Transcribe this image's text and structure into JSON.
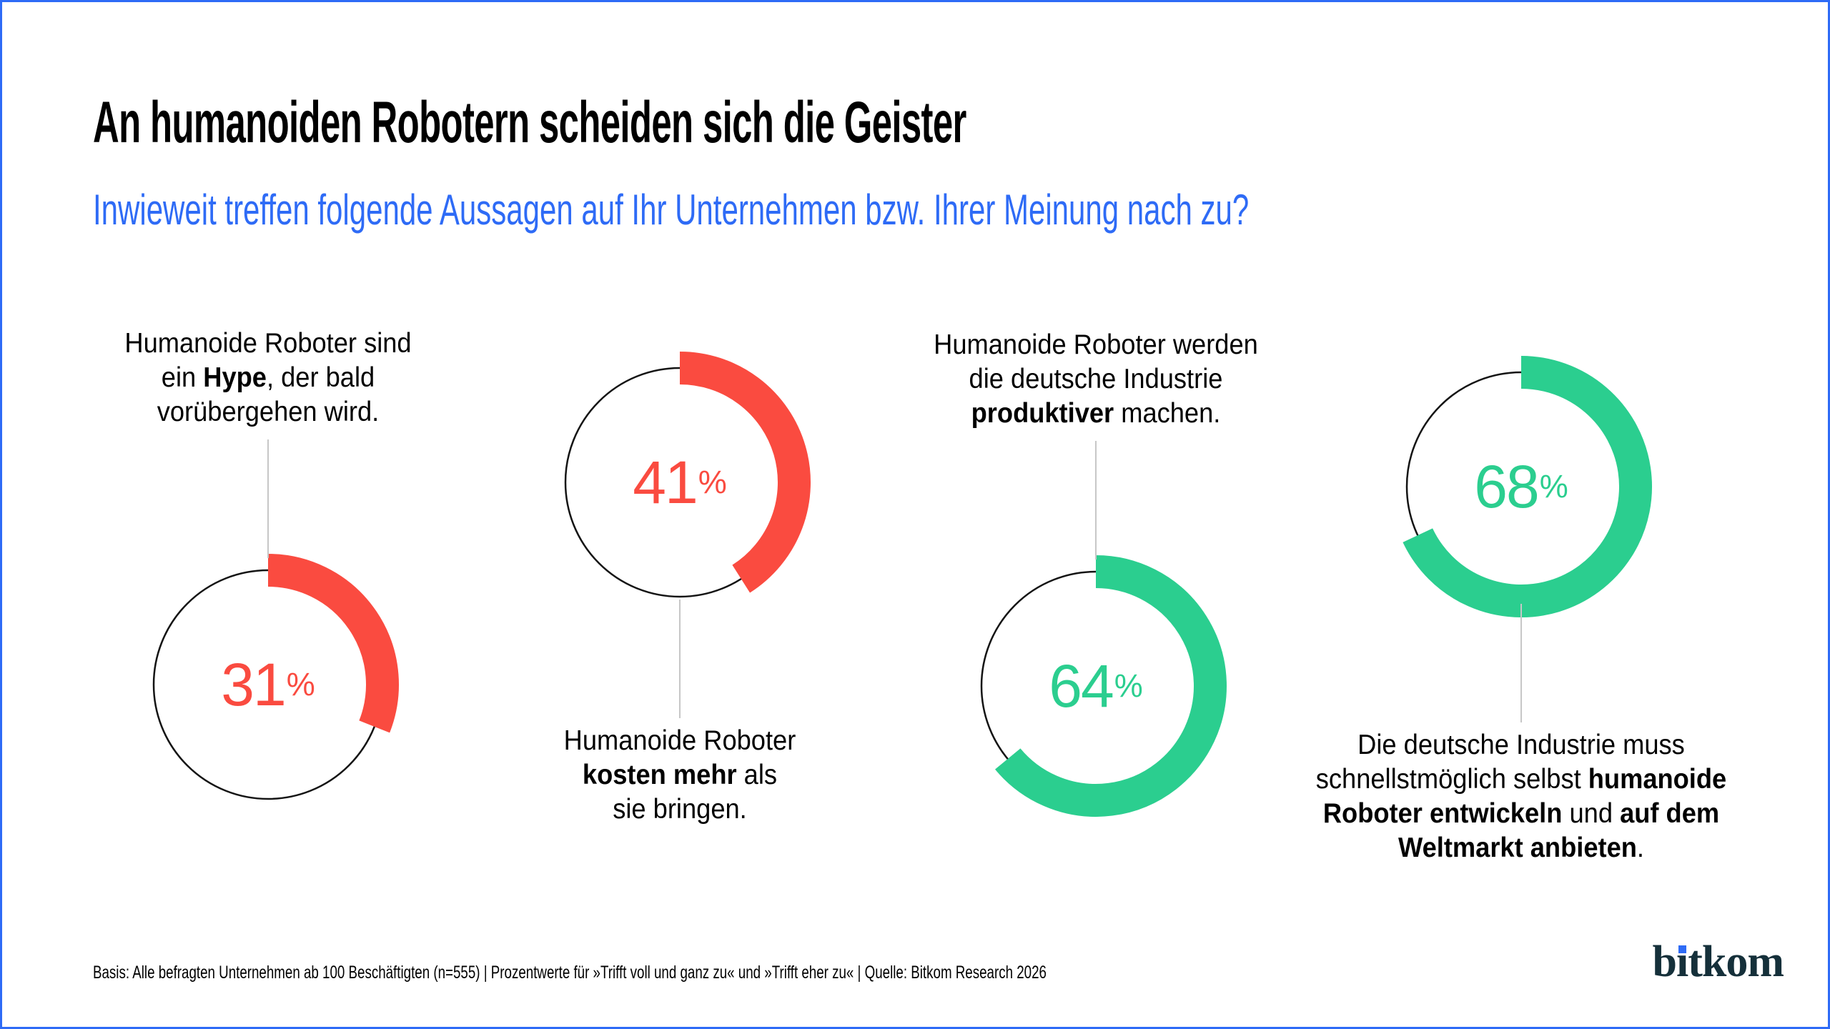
{
  "header": {
    "title": "An humanoiden Robotern scheiden sich die Geister",
    "subtitle": "Inwieweit treffen folgende Aussagen auf Ihr Unternehmen bzw. Ihrer Meinung nach zu?"
  },
  "chart_data": {
    "type": "donut",
    "unit": "%",
    "start_angle_deg": 0,
    "direction": "clockwise",
    "items": [
      {
        "value": 31,
        "color": "#fa4b40",
        "label_position": "above",
        "label_text": "Humanoide Roboter sind ein Hype, der bald vorübergehen wird.",
        "label_lines": [
          [
            {
              "t": "Humanoide Roboter sind"
            }
          ],
          [
            {
              "t": "ein "
            },
            {
              "t": "Hype",
              "b": true
            },
            {
              "t": ", der bald"
            }
          ],
          [
            {
              "t": "vorübergehen wird."
            }
          ]
        ]
      },
      {
        "value": 41,
        "color": "#fa4b40",
        "label_position": "below",
        "label_text": "Humanoide Roboter kosten mehr als sie bringen.",
        "label_lines": [
          [
            {
              "t": "Humanoide Roboter"
            }
          ],
          [
            {
              "t": "kosten mehr",
              "b": true
            },
            {
              "t": " als"
            }
          ],
          [
            {
              "t": "sie bringen."
            }
          ]
        ]
      },
      {
        "value": 64,
        "color": "#2bce8f",
        "label_position": "above",
        "label_text": "Humanoide Roboter werden die deutsche Industrie produktiver machen.",
        "label_lines": [
          [
            {
              "t": "Humanoide Roboter werden"
            }
          ],
          [
            {
              "t": "die deutsche Industrie"
            }
          ],
          [
            {
              "t": "produktiver",
              "b": true
            },
            {
              "t": " machen."
            }
          ]
        ]
      },
      {
        "value": 68,
        "color": "#2bce8f",
        "label_position": "below",
        "label_text": "Die deutsche Industrie muss schnellstmöglich selbst humanoide Roboter entwickeln und auf dem Weltmarkt anbieten.",
        "label_lines": [
          [
            {
              "t": "Die deutsche Industrie muss"
            }
          ],
          [
            {
              "t": "schnellstmöglich selbst "
            },
            {
              "t": "humanoide",
              "b": true
            }
          ],
          [
            {
              "t": "Roboter entwickeln",
              "b": true
            },
            {
              "t": " und "
            },
            {
              "t": "auf dem",
              "b": true
            }
          ],
          [
            {
              "t": "Weltmarkt anbieten",
              "b": true
            },
            {
              "t": "."
            }
          ]
        ]
      }
    ]
  },
  "footer": {
    "source": "Basis: Alle befragten Unternehmen ab 100 Beschäftigten (n=555) | Prozentwerte für »Trifft voll und ganz zu« und »Trifft eher zu« | Quelle: Bitkom Research 2026"
  },
  "logo": {
    "text": "bitkom"
  },
  "colors": {
    "accent_blue": "#2e6bf6",
    "negative_red": "#fa4b40",
    "positive_green": "#2bce8f",
    "logo_dark": "#15303a",
    "circle_stroke": "#141414",
    "connector_gray": "#c7c7c7"
  }
}
